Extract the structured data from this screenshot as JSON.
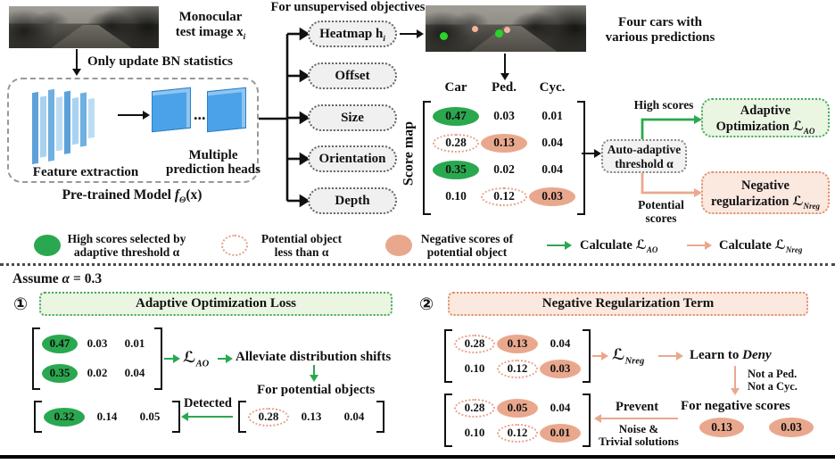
{
  "colors": {
    "green": "#2aa84f",
    "pink": "#e9a88d",
    "pink_outline": "#e8a088",
    "green_box_bg": "#eaf5e2",
    "pink_box_bg": "#fbe8df",
    "gray_box_bg": "#f0f0f0",
    "head_blue": "#4ba2e8"
  },
  "top": {
    "monocular_line1": "Monocular",
    "monocular_line2": "test image x",
    "monocular_sub": "i",
    "bn_label": "Only update BN statistics",
    "unsupervised_label": "For unsupervised objectives",
    "four_cars_line1": "Four cars with",
    "four_cars_line2": "various predictions"
  },
  "model": {
    "feature_extraction_label": "Feature extraction",
    "heads_line1": "Multiple",
    "heads_line2": "prediction heads",
    "dots": "...",
    "caption_prefix": "Pre-trained Model ",
    "caption_f": "f",
    "caption_sub": "Θ",
    "caption_suffix": "(x)"
  },
  "objectives": {
    "heatmap_label": "Heatmap h",
    "heatmap_sub": "i",
    "items": [
      "Offset",
      "Size",
      "Orientation",
      "Depth"
    ]
  },
  "score_map": {
    "side_label": "Score map",
    "headers": [
      "Car",
      "Ped.",
      "Cyc."
    ],
    "rows": [
      [
        {
          "v": "0.47",
          "s": "g"
        },
        {
          "v": "0.03",
          "s": "n"
        },
        {
          "v": "0.01",
          "s": "n"
        }
      ],
      [
        {
          "v": "0.28",
          "s": "d"
        },
        {
          "v": "0.13",
          "s": "p"
        },
        {
          "v": "0.04",
          "s": "n"
        }
      ],
      [
        {
          "v": "0.35",
          "s": "g"
        },
        {
          "v": "0.02",
          "s": "n"
        },
        {
          "v": "0.04",
          "s": "n"
        }
      ],
      [
        {
          "v": "0.10",
          "s": "n"
        },
        {
          "v": "0.12",
          "s": "d"
        },
        {
          "v": "0.03",
          "s": "p"
        }
      ]
    ]
  },
  "branch": {
    "threshold_line1": "Auto-adaptive",
    "threshold_line2": "threshold α",
    "high_scores_label": "High scores",
    "potential_line1": "Potential",
    "potential_line2": "scores",
    "ao_line1": "Adaptive",
    "ao_line2": "Optimization ",
    "ao_math": "ℒ",
    "ao_sub": "AO",
    "nreg_line1": "Negative",
    "nreg_line2": "regularization ",
    "nreg_math": "ℒ",
    "nreg_sub": "Nreg"
  },
  "legend": {
    "high_line1": "High scores selected by",
    "high_line2": "adaptive threshold α",
    "potential_line1": "Potential object",
    "potential_line2": "less than α",
    "negative_line1": "Negative scores of",
    "negative_line2": "potential object",
    "calc_prefix": "Calculate ",
    "calc_ao_math": "ℒ",
    "calc_ao_sub": "AO",
    "calc_nreg_math": "ℒ",
    "calc_nreg_sub": "Nreg"
  },
  "bottom": {
    "assume_prefix": "Assume ",
    "assume_alpha": "α",
    "assume_rest": " = 0.3",
    "panel1": {
      "number": "①",
      "title": "Adaptive Optimization Loss",
      "matrix_high": [
        [
          {
            "v": "0.47",
            "s": "g"
          },
          {
            "v": "0.03",
            "s": "n"
          },
          {
            "v": "0.01",
            "s": "n"
          }
        ],
        [
          {
            "v": "0.35",
            "s": "g"
          },
          {
            "v": "0.02",
            "s": "n"
          },
          {
            "v": "0.04",
            "s": "n"
          }
        ]
      ],
      "loss_math": "ℒ",
      "loss_sub": "AO",
      "alleviate_label": "Alleviate distribution shifts",
      "for_potential_label": "For potential objects",
      "matrix_potential": [
        [
          {
            "v": "0.28",
            "s": "d"
          },
          {
            "v": "0.13",
            "s": "n"
          },
          {
            "v": "0.04",
            "s": "n"
          }
        ]
      ],
      "detected_label": "Detected",
      "matrix_detected": [
        [
          {
            "v": "0.32",
            "s": "g"
          },
          {
            "v": "0.14",
            "s": "n"
          },
          {
            "v": "0.05",
            "s": "n"
          }
        ]
      ]
    },
    "panel2": {
      "number": "②",
      "title": "Negative Regularization Term",
      "matrix_negative": [
        [
          {
            "v": "0.28",
            "s": "d"
          },
          {
            "v": "0.13",
            "s": "p"
          },
          {
            "v": "0.04",
            "s": "n"
          }
        ],
        [
          {
            "v": "0.10",
            "s": "n"
          },
          {
            "v": "0.12",
            "s": "d"
          },
          {
            "v": "0.03",
            "s": "p"
          }
        ]
      ],
      "loss_math": "ℒ",
      "loss_sub": "Nreg",
      "learn_prefix": "Learn to ",
      "learn_deny": "Deny",
      "not_ped": "Not a Ped.",
      "not_cyc": "Not a Cyc.",
      "for_negative_label": "For negative scores",
      "negative_scores": [
        [
          {
            "v": "0.13",
            "s": "p"
          },
          {
            "v": "0.03",
            "s": "p"
          }
        ]
      ],
      "prevent_label": "Prevent",
      "noise_line1": "Noise &",
      "noise_line2": "Trivial solutions",
      "matrix_prevent": [
        [
          {
            "v": "0.28",
            "s": "d"
          },
          {
            "v": "0.05",
            "s": "p"
          },
          {
            "v": "0.04",
            "s": "n"
          }
        ],
        [
          {
            "v": "0.10",
            "s": "n"
          },
          {
            "v": "0.12",
            "s": "d"
          },
          {
            "v": "0.01",
            "s": "p"
          }
        ]
      ]
    }
  }
}
